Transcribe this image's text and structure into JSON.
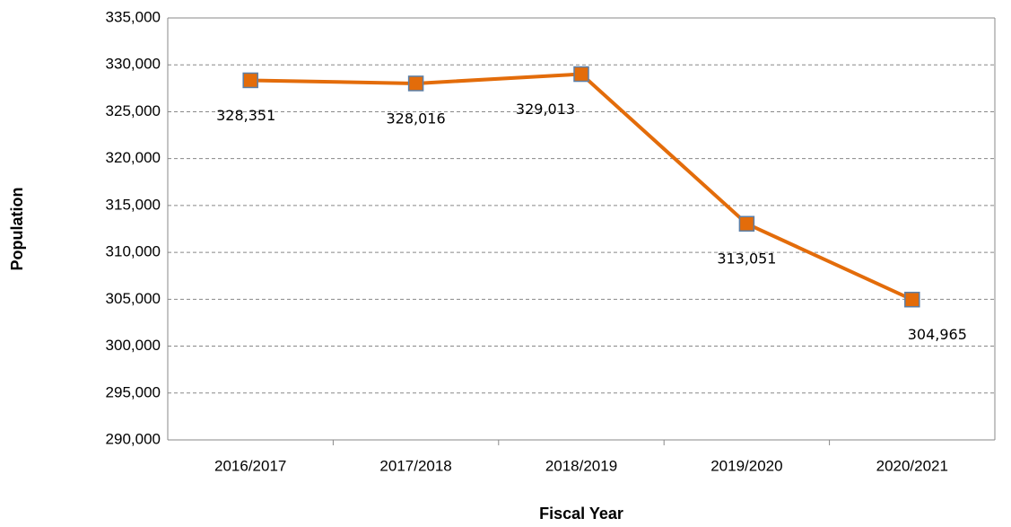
{
  "chart_data": {
    "type": "line",
    "x_label": "Fiscal Year",
    "y_label": "Population",
    "categories": [
      "2016/2017",
      "2017/2018",
      "2018/2019",
      "2019/2020",
      "2020/2021"
    ],
    "series": [
      {
        "name": "Population",
        "color": "#e36c0a",
        "marker_stroke": "#5b7fa8",
        "values": [
          328351,
          328016,
          329013,
          313051,
          304965
        ],
        "value_labels": [
          "328,351",
          "328,016",
          "329,013",
          "313,051",
          "304,965"
        ]
      }
    ],
    "ylim": [
      290000,
      335000
    ],
    "yticks": [
      {
        "value": 290000,
        "label": "290,000"
      },
      {
        "value": 295000,
        "label": "295,000"
      },
      {
        "value": 300000,
        "label": "300,000"
      },
      {
        "value": 305000,
        "label": "305,000"
      },
      {
        "value": 310000,
        "label": "310,000"
      },
      {
        "value": 315000,
        "label": "315,000"
      },
      {
        "value": 320000,
        "label": "320,000"
      },
      {
        "value": 325000,
        "label": "325,000"
      },
      {
        "value": 330000,
        "label": "330,000"
      },
      {
        "value": 335000,
        "label": "335,000"
      }
    ],
    "grid": true
  }
}
